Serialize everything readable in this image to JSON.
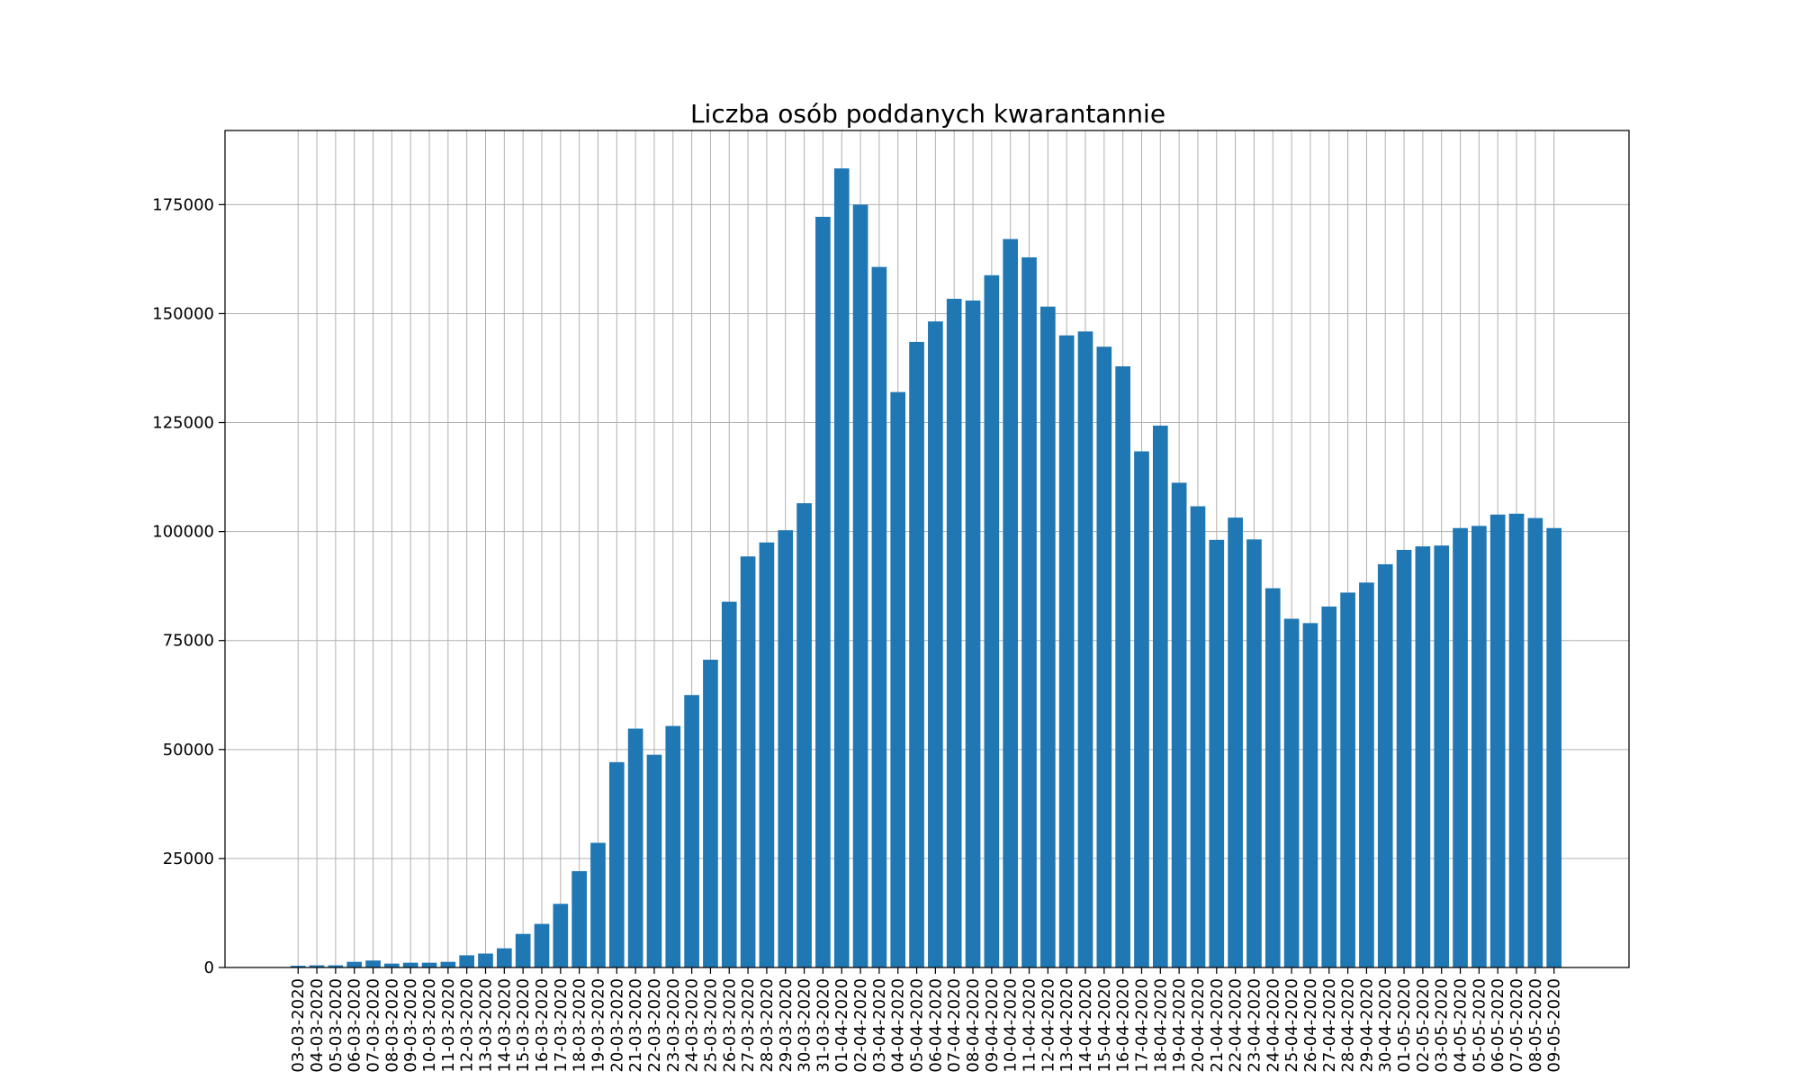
{
  "chart_data": {
    "type": "bar",
    "title": "Liczba osób poddanych kwarantannie",
    "xlabel": "",
    "ylabel": "",
    "ylim": [
      0,
      192000
    ],
    "yticks": [
      0,
      25000,
      50000,
      75000,
      100000,
      125000,
      150000,
      175000
    ],
    "grid": true,
    "color": "#1f77b4",
    "categories": [
      "03-03-2020",
      "04-03-2020",
      "05-03-2020",
      "06-03-2020",
      "07-03-2020",
      "08-03-2020",
      "09-03-2020",
      "10-03-2020",
      "11-03-2020",
      "12-03-2020",
      "13-03-2020",
      "14-03-2020",
      "15-03-2020",
      "16-03-2020",
      "17-03-2020",
      "18-03-2020",
      "19-03-2020",
      "20-03-2020",
      "21-03-2020",
      "22-03-2020",
      "23-03-2020",
      "24-03-2020",
      "25-03-2020",
      "26-03-2020",
      "27-03-2020",
      "28-03-2020",
      "29-03-2020",
      "30-03-2020",
      "31-03-2020",
      "01-04-2020",
      "02-04-2020",
      "03-04-2020",
      "04-04-2020",
      "05-04-2020",
      "06-04-2020",
      "07-04-2020",
      "08-04-2020",
      "09-04-2020",
      "10-04-2020",
      "11-04-2020",
      "12-04-2020",
      "13-04-2020",
      "14-04-2020",
      "15-04-2020",
      "16-04-2020",
      "17-04-2020",
      "18-04-2020",
      "19-04-2020",
      "20-04-2020",
      "21-04-2020",
      "22-04-2020",
      "23-04-2020",
      "24-04-2020",
      "25-04-2020",
      "26-04-2020",
      "27-04-2020",
      "28-04-2020",
      "29-04-2020",
      "30-04-2020",
      "01-05-2020",
      "02-05-2020",
      "03-05-2020",
      "04-05-2020",
      "05-05-2020",
      "06-05-2020",
      "07-05-2020",
      "08-05-2020",
      "09-05-2020"
    ],
    "values": [
      400,
      500,
      500,
      1300,
      1600,
      900,
      1100,
      1100,
      1300,
      2800,
      3200,
      4400,
      7700,
      10000,
      14600,
      22100,
      28600,
      47100,
      54800,
      48800,
      55400,
      62500,
      70600,
      83900,
      94300,
      97500,
      100300,
      106500,
      172200,
      183300,
      175000,
      160700,
      132000,
      143500,
      148200,
      153400,
      153000,
      158800,
      167100,
      162900,
      151600,
      145000,
      145900,
      142400,
      137900,
      118400,
      124300,
      111200,
      105800,
      98100,
      103200,
      98200,
      87000,
      80000,
      79000,
      82800,
      86000,
      88300,
      92500,
      95800,
      96600,
      96800,
      100800,
      101300,
      103900,
      104100,
      103100,
      100800
    ]
  }
}
